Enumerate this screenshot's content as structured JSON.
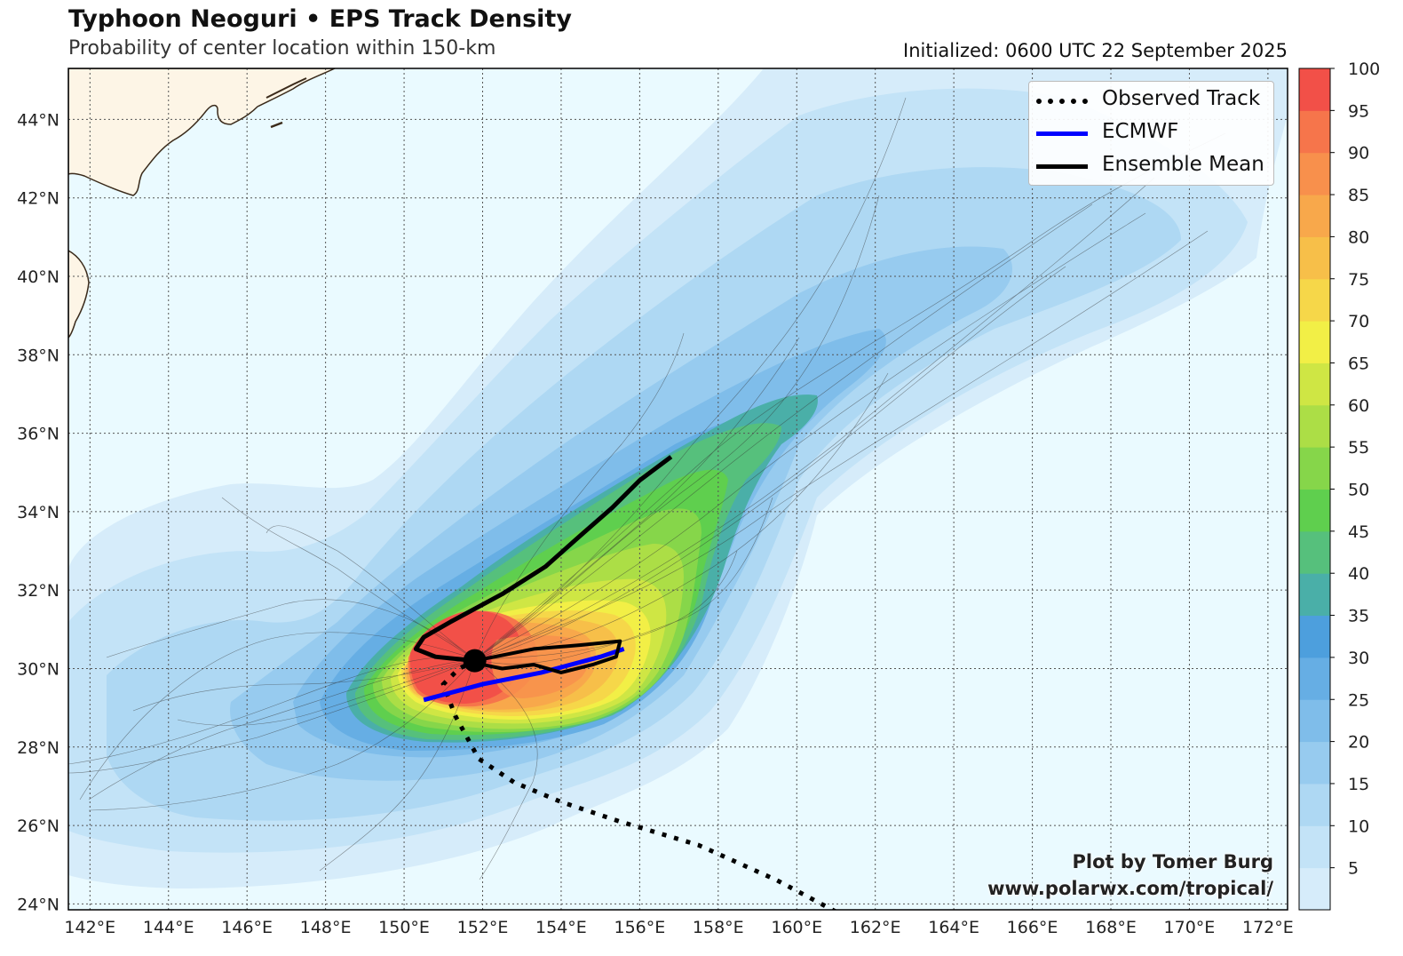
{
  "title": "Typhoon Neoguri • EPS Track Density",
  "subtitle": "Probability of center location within 150-km",
  "initialized": "Initialized: 0600 UTC 22 September 2025",
  "credit": {
    "line1": "Plot by Tomer Burg",
    "line2": "www.polarwx.com/tropical/"
  },
  "legend": [
    {
      "label": "Observed Track",
      "color": "#000000",
      "style": "dotted"
    },
    {
      "label": "ECMWF",
      "color": "#0000ff",
      "style": "solid"
    },
    {
      "label": "Ensemble Mean",
      "color": "#000000",
      "style": "solid"
    }
  ],
  "axes": {
    "lon_labels": [
      "142°E",
      "144°E",
      "146°E",
      "148°E",
      "150°E",
      "152°E",
      "154°E",
      "156°E",
      "158°E",
      "160°E",
      "162°E",
      "164°E",
      "166°E",
      "168°E",
      "170°E",
      "172°E"
    ],
    "lat_labels": [
      "24°N",
      "26°N",
      "28°N",
      "30°N",
      "32°N",
      "34°N",
      "36°N",
      "38°N",
      "40°N",
      "42°N",
      "44°N"
    ]
  },
  "colorbar": {
    "labels": [
      "5",
      "10",
      "15",
      "20",
      "25",
      "30",
      "35",
      "40",
      "45",
      "50",
      "55",
      "60",
      "65",
      "70",
      "75",
      "80",
      "85",
      "90",
      "95",
      "100"
    ],
    "colors": [
      "#d6ecfa",
      "#c3e3f7",
      "#aed8f3",
      "#97cbef",
      "#7fbdea",
      "#66aee4",
      "#4d9fdd",
      "#4aafa8",
      "#56c07c",
      "#5fcf4e",
      "#86d64a",
      "#acde46",
      "#cfe644",
      "#f2ef46",
      "#f6d749",
      "#f7bf49",
      "#f8a84b",
      "#f8904c",
      "#f6754b",
      "#f25048"
    ],
    "colors_marks_note": "",
    "min": 0,
    "max": 100
  },
  "storm": {
    "current_position": {
      "lon": 151.8,
      "lat": 30.2
    },
    "observed_track": [
      [
        161.0,
        23.8
      ],
      [
        159.5,
        24.6
      ],
      [
        157.5,
        25.5
      ],
      [
        155.5,
        26.1
      ],
      [
        154.0,
        26.6
      ],
      [
        152.8,
        27.1
      ],
      [
        151.9,
        27.7
      ],
      [
        151.3,
        28.8
      ],
      [
        151.0,
        29.6
      ],
      [
        151.4,
        30.0
      ],
      [
        151.8,
        30.2
      ]
    ],
    "ecmwf_track": [
      [
        150.5,
        29.2
      ],
      [
        152.0,
        29.6
      ],
      [
        153.5,
        29.9
      ],
      [
        155.0,
        30.3
      ],
      [
        155.6,
        30.5
      ]
    ],
    "ensemble_mean_track": [
      [
        151.8,
        30.2
      ],
      [
        150.8,
        30.3
      ],
      [
        150.3,
        30.5
      ],
      [
        150.5,
        30.8
      ],
      [
        151.2,
        31.2
      ],
      [
        152.5,
        31.9
      ],
      [
        153.6,
        32.6
      ],
      [
        154.5,
        33.4
      ],
      [
        155.3,
        34.1
      ],
      [
        156.0,
        34.8
      ],
      [
        156.8,
        35.4
      ]
    ],
    "ensemble_mean_loop": [
      [
        151.8,
        30.2
      ],
      [
        153.3,
        30.5
      ],
      [
        154.5,
        30.6
      ],
      [
        155.5,
        30.7
      ],
      [
        155.4,
        30.3
      ],
      [
        154.8,
        30.1
      ],
      [
        154.0,
        29.9
      ],
      [
        153.3,
        30.1
      ],
      [
        152.5,
        30.0
      ],
      [
        152.0,
        30.1
      ]
    ]
  }
}
